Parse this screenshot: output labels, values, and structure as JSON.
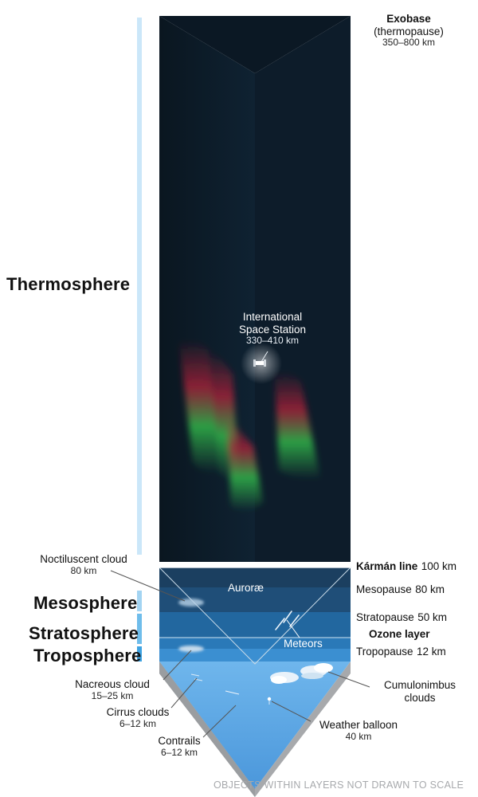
{
  "layers": {
    "thermosphere": "Thermosphere",
    "mesosphere": "Mesosphere",
    "stratosphere": "Stratosphere",
    "troposphere": "Troposphere"
  },
  "boundaries": {
    "exobase": {
      "name": "Exobase",
      "alt": "(thermopause)",
      "range": "350–800 km"
    },
    "karman": {
      "name": "Kármán line",
      "alt": "100 km"
    },
    "mesopause": {
      "name": "Mesopause",
      "alt": "80 km"
    },
    "stratopause": {
      "name": "Stratopause",
      "alt": "50 km"
    },
    "ozone": {
      "name": "Ozone layer"
    },
    "tropopause": {
      "name": "Tropopause",
      "alt": "12 km"
    }
  },
  "objects": {
    "iss": {
      "line1": "International",
      "line2": "Space Station",
      "range": "330–410 km"
    },
    "aurorae": "Auroræ",
    "meteors": "Meteors",
    "noctilucent": {
      "name": "Noctiluscent cloud",
      "alt": "80 km"
    },
    "nacreous": {
      "name": "Nacreous cloud",
      "alt": "15–25 km"
    },
    "cirrus": {
      "name": "Cirrus clouds",
      "alt": "6–12 km"
    },
    "contrails": {
      "name": "Contrails",
      "alt": "6–12 km"
    },
    "balloon": {
      "name": "Weather balloon",
      "alt": "40 km"
    },
    "cumulonimbus": {
      "line1": "Cumulonimbus",
      "line2": "clouds"
    }
  },
  "footnote": "OBJECTS WITHIN LAYERS NOT DRAWN TO SCALE",
  "colors": {
    "space": "#0d1c2a",
    "thermo_bar": "#c9e6f8",
    "meso_bar": "#9fd2f1",
    "strato_bar": "#6cbbea",
    "tropo_bar": "#3b9fe0",
    "meso": "#16344f",
    "strato": "#1f5d8f",
    "tropo": "#3b88cc",
    "ground": "#5ba7e6"
  }
}
